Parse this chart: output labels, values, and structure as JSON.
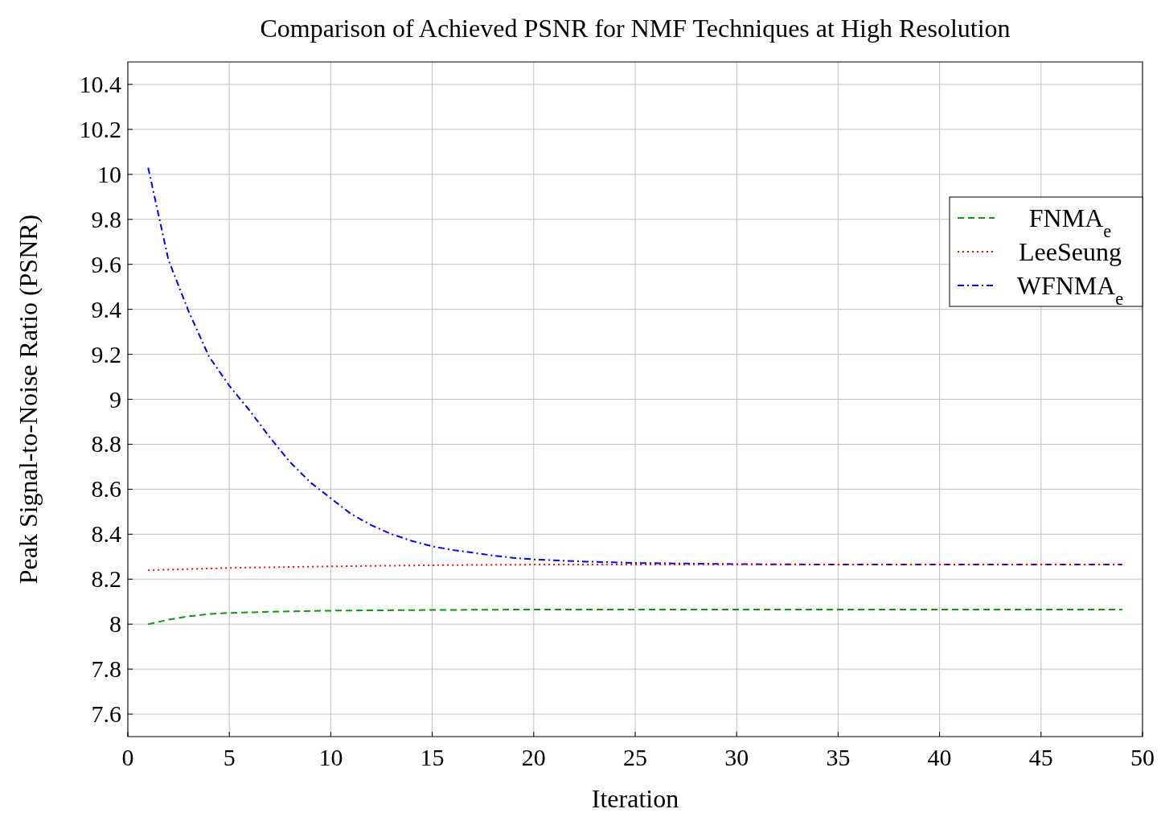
{
  "chart_data": {
    "type": "line",
    "title": "Comparison of Achieved PSNR for NMF Techniques at High Resolution",
    "xlabel": "Iteration",
    "ylabel": "Peak Signal-to-Noise Ratio (PSNR)",
    "xlim": [
      0,
      50
    ],
    "xticks": [
      0,
      5,
      10,
      15,
      20,
      25,
      30,
      35,
      40,
      45,
      50
    ],
    "ylim": [
      7.5,
      10.5
    ],
    "yticks": [
      7.6,
      7.8,
      8,
      8.2,
      8.4,
      8.6,
      8.8,
      9,
      9.2,
      9.4,
      9.6,
      9.8,
      10,
      10.2,
      10.4
    ],
    "grid": true,
    "legend": "top right",
    "marker": "none",
    "series": [
      {
        "name": "FNMA$_{e}$",
        "color": "#00a000",
        "line_style": "dashed",
        "x": [
          1,
          2,
          3,
          4,
          5,
          7,
          10,
          15,
          20,
          25,
          30,
          35,
          40,
          45,
          49
        ],
        "values": [
          8.0,
          8.02,
          8.035,
          8.045,
          8.05,
          8.055,
          8.06,
          8.063,
          8.065,
          8.065,
          8.065,
          8.065,
          8.065,
          8.065,
          8.065
        ]
      },
      {
        "name": "LeeSeung",
        "color": "#ff0000",
        "line_style": "dotted",
        "x": [
          1,
          5,
          10,
          15,
          20,
          25,
          30,
          35,
          40,
          45,
          49
        ],
        "values": [
          8.24,
          8.25,
          8.257,
          8.262,
          8.265,
          8.265,
          8.265,
          8.265,
          8.265,
          8.265,
          8.265
        ]
      },
      {
        "name": "WFNMA$_{e}$",
        "color": "#0000ff",
        "line_style": "dashdot",
        "x": [
          1,
          2,
          3,
          4,
          5,
          6,
          7,
          8,
          9,
          10,
          11,
          12,
          13,
          14,
          15,
          16,
          17,
          18,
          19,
          20,
          22,
          25,
          30,
          35,
          40,
          45,
          49
        ],
        "values": [
          10.03,
          9.62,
          9.39,
          9.19,
          9.06,
          8.95,
          8.83,
          8.72,
          8.63,
          8.56,
          8.49,
          8.44,
          8.4,
          8.37,
          8.346,
          8.33,
          8.318,
          8.305,
          8.295,
          8.288,
          8.28,
          8.272,
          8.267,
          8.265,
          8.265,
          8.265,
          8.265
        ]
      }
    ]
  }
}
